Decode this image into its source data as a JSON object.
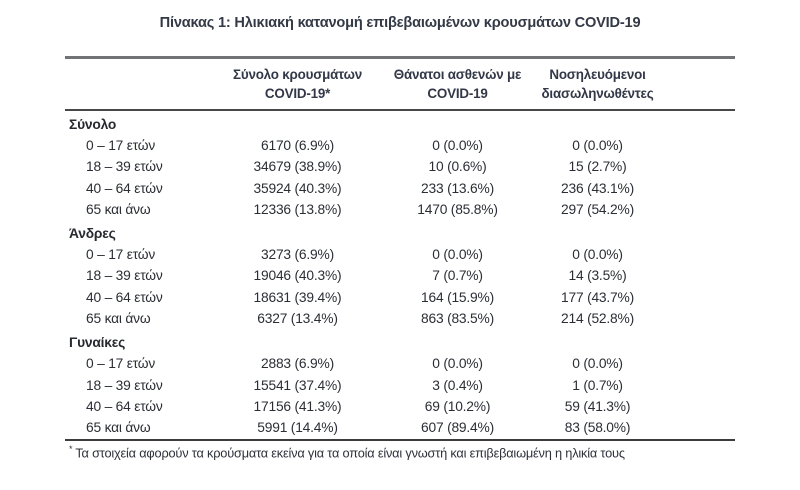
{
  "title": "Πίνακας 1: Ηλικιακή κατανομή επιβεβαιωμένων κρουσμάτων COVID-19",
  "table": {
    "headers": [
      {
        "line1": "Σύνολο κρουσμάτων",
        "line2": "COVID-19*"
      },
      {
        "line1": "Θάνατοι ασθενών με",
        "line2": "COVID-19"
      },
      {
        "line1": "Νοσηλευόμενοι",
        "line2": "διασωληνωθέντες"
      }
    ],
    "sections": [
      {
        "label": "Σύνολο",
        "rows": [
          {
            "label": "0 – 17 ετών",
            "cases": "6170 (6.9%)",
            "deaths": "0 (0.0%)",
            "intubated": "0 (0.0%)"
          },
          {
            "label": "18 – 39 ετών",
            "cases": "34679 (38.9%)",
            "deaths": "10 (0.6%)",
            "intubated": "15 (2.7%)"
          },
          {
            "label": "40 – 64 ετών",
            "cases": "35924 (40.3%)",
            "deaths": "233 (13.6%)",
            "intubated": "236 (43.1%)"
          },
          {
            "label": "65 και άνω",
            "cases": "12336 (13.8%)",
            "deaths": "1470 (85.8%)",
            "intubated": "297 (54.2%)"
          }
        ]
      },
      {
        "label": "Άνδρες",
        "rows": [
          {
            "label": "0 – 17 ετών",
            "cases": "3273 (6.9%)",
            "deaths": "0 (0.0%)",
            "intubated": "0 (0.0%)"
          },
          {
            "label": "18 – 39 ετών",
            "cases": "19046 (40.3%)",
            "deaths": "7 (0.7%)",
            "intubated": "14 (3.5%)"
          },
          {
            "label": "40 – 64 ετών",
            "cases": "18631 (39.4%)",
            "deaths": "164 (15.9%)",
            "intubated": "177 (43.7%)"
          },
          {
            "label": "65 και άνω",
            "cases": "6327 (13.4%)",
            "deaths": "863 (83.5%)",
            "intubated": "214 (52.8%)"
          }
        ]
      },
      {
        "label": "Γυναίκες",
        "rows": [
          {
            "label": "0 – 17 ετών",
            "cases": "2883 (6.9%)",
            "deaths": "0 (0.0%)",
            "intubated": "0 (0.0%)"
          },
          {
            "label": "18 – 39 ετών",
            "cases": "15541 (37.4%)",
            "deaths": "3 (0.4%)",
            "intubated": "1 (0.7%)"
          },
          {
            "label": "40 – 64 ετών",
            "cases": "17156 (41.3%)",
            "deaths": "69 (10.2%)",
            "intubated": "59 (41.3%)"
          },
          {
            "label": "65 και άνω",
            "cases": "5991 (14.4%)",
            "deaths": "607 (89.4%)",
            "intubated": "83 (58.0%)"
          }
        ]
      }
    ]
  },
  "footnote": {
    "marker": "*",
    "text": "Τα στοιχεία αφορούν τα κρούσματα εκείνα για τα οποία είναι γνωστή και επιβεβαιωμένη η ηλικία τους"
  },
  "chart_data": {
    "type": "table",
    "title": "Πίνακας 1: Ηλικιακή κατανομή επιβεβαιωμένων κρουσμάτων COVID-19",
    "columns": [
      "Σύνολο κρουσμάτων COVID-19*",
      "Θάνατοι ασθενών με COVID-19",
      "Νοσηλευόμενοι διασωληνωθέντες"
    ],
    "groups": [
      {
        "name": "Σύνολο",
        "rows": [
          [
            "0 – 17 ετών",
            6170,
            0,
            0
          ],
          [
            "18 – 39 ετών",
            34679,
            10,
            15
          ],
          [
            "40 – 64 ετών",
            35924,
            233,
            236
          ],
          [
            "65 και άνω",
            12336,
            1470,
            297
          ]
        ]
      },
      {
        "name": "Άνδρες",
        "rows": [
          [
            "0 – 17 ετών",
            3273,
            0,
            0
          ],
          [
            "18 – 39 ετών",
            19046,
            7,
            14
          ],
          [
            "40 – 64 ετών",
            18631,
            164,
            177
          ],
          [
            "65 και άνω",
            6327,
            863,
            214
          ]
        ]
      },
      {
        "name": "Γυναίκες",
        "rows": [
          [
            "0 – 17 ετών",
            2883,
            0,
            0
          ],
          [
            "18 – 39 ετών",
            15541,
            3,
            1
          ],
          [
            "40 – 64 ετών",
            17156,
            69,
            59
          ],
          [
            "65 και άνω",
            5991,
            607,
            83
          ]
        ]
      }
    ]
  }
}
